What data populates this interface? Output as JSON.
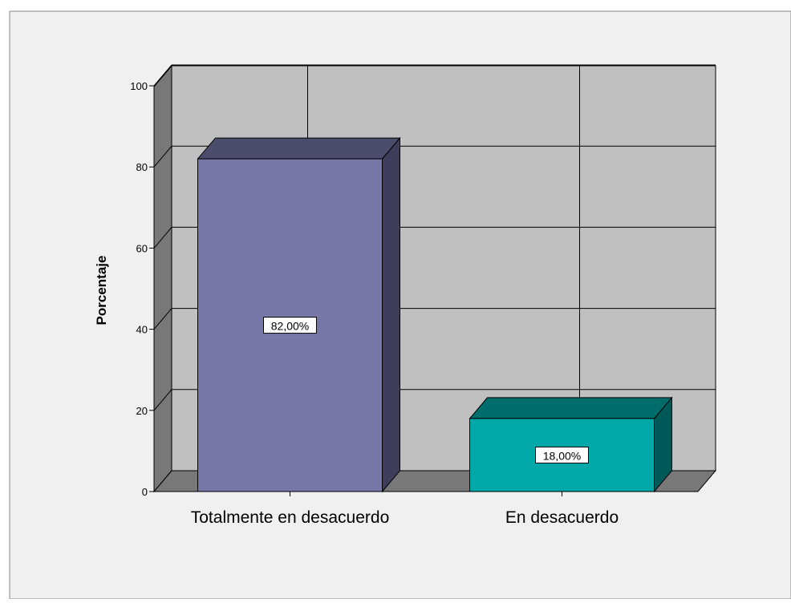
{
  "colors": {
    "frame_bg": "#f0f0f0",
    "wall": "#c0c0c0",
    "side_wall": "#787878",
    "floor": "#787878",
    "grid": "#000000",
    "bar1_front": "#7878a8",
    "bar1_top": "#4c4c6c",
    "bar1_side": "#3e3e5c",
    "bar2_front": "#00a8a8",
    "bar2_top": "#006c6c",
    "bar2_side": "#005858"
  },
  "chart_data": {
    "type": "bar",
    "style": "3d",
    "categories": [
      "Totalmente en desacuerdo",
      "En desacuerdo"
    ],
    "values": [
      82,
      18
    ],
    "data_labels": [
      "82,00%",
      "18,00%"
    ],
    "title": "",
    "xlabel": "",
    "ylabel": "Porcentaje",
    "ylim": [
      0,
      100
    ],
    "yticks": [
      "0",
      "20",
      "40",
      "60",
      "80",
      "100"
    ],
    "grid": true,
    "legend": "none"
  }
}
